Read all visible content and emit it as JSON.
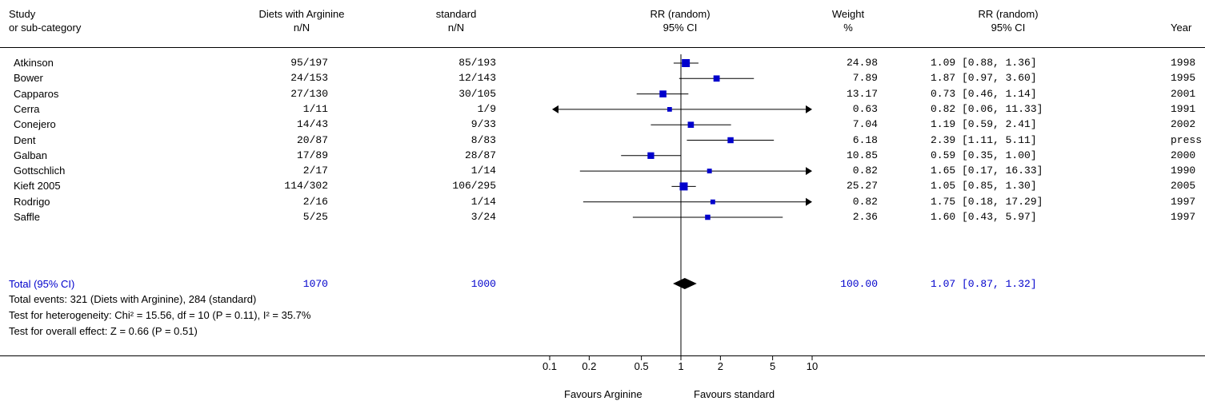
{
  "headers": {
    "study": [
      "Study",
      "or sub-category"
    ],
    "arginine": [
      "Diets with Arginine",
      "n/N"
    ],
    "standard": [
      "standard",
      "n/N"
    ],
    "rr_plot": [
      "RR (random)",
      "95% CI"
    ],
    "weight": [
      "Weight",
      "%"
    ],
    "rr_text": [
      "RR (random)",
      "95% CI"
    ],
    "year": [
      "",
      "Year"
    ]
  },
  "rows": [
    {
      "study": "Atkinson",
      "arg": "95/197",
      "std": "85/193",
      "weight": "24.98",
      "ci": "1.09 [0.88, 1.36]",
      "year": "1998"
    },
    {
      "study": "Bower",
      "arg": "24/153",
      "std": "12/143",
      "weight": "7.89",
      "ci": "1.87 [0.97, 3.60]",
      "year": "1995"
    },
    {
      "study": "Capparos",
      "arg": "27/130",
      "std": "30/105",
      "weight": "13.17",
      "ci": "0.73 [0.46, 1.14]",
      "year": "2001"
    },
    {
      "study": "Cerra",
      "arg": "1/11",
      "std": "1/9",
      "weight": "0.63",
      "ci": "0.82 [0.06, 11.33]",
      "year": "1991"
    },
    {
      "study": "Conejero",
      "arg": "14/43",
      "std": "9/33",
      "weight": "7.04",
      "ci": "1.19 [0.59, 2.41]",
      "year": "2002"
    },
    {
      "study": "Dent",
      "arg": "20/87",
      "std": "8/83",
      "weight": "6.18",
      "ci": "2.39 [1.11, 5.11]",
      "year": "press"
    },
    {
      "study": "Galban",
      "arg": "17/89",
      "std": "28/87",
      "weight": "10.85",
      "ci": "0.59 [0.35, 1.00]",
      "year": "2000"
    },
    {
      "study": "Gottschlich",
      "arg": "2/17",
      "std": "1/14",
      "weight": "0.82",
      "ci": "1.65 [0.17, 16.33]",
      "year": "1990"
    },
    {
      "study": "Kieft 2005",
      "arg": "114/302",
      "std": "106/295",
      "weight": "25.27",
      "ci": "1.05 [0.85, 1.30]",
      "year": "2005"
    },
    {
      "study": "Rodrigo",
      "arg": "2/16",
      "std": "1/14",
      "weight": "0.82",
      "ci": "1.75 [0.18, 17.29]",
      "year": "1997"
    },
    {
      "study": "Saffle",
      "arg": "5/25",
      "std": "3/24",
      "weight": "2.36",
      "ci": "1.60 [0.43, 5.97]",
      "year": "1997"
    }
  ],
  "total": {
    "label": "Total (95% CI)",
    "arg": "1070",
    "std": "1000",
    "weight": "100.00",
    "ci": "1.07 [0.87, 1.32]"
  },
  "notes": [
    "Total events: 321 (Diets with Arginine), 284 (standard)",
    "Test for heterogeneity: Chi² = 15.56, df = 10 (P = 0.11), I² = 35.7%",
    "Test for overall effect: Z = 0.66 (P = 0.51)"
  ],
  "axis": {
    "ticks": [
      0.1,
      0.2,
      0.5,
      1,
      2,
      5,
      10
    ],
    "tick_labels": [
      "0.1",
      "0.2",
      "0.5",
      "1",
      "2",
      "5",
      "10"
    ],
    "favours_left": "Favours Arginine",
    "favours_right": "Favours standard"
  },
  "colors": {
    "marker": "#0000cc",
    "total_text": "#0000cc",
    "line": "#000000"
  },
  "chart_data": {
    "type": "forest",
    "scale": "log",
    "xlim": [
      0.1,
      10
    ],
    "null_value": 1,
    "studies": [
      {
        "name": "Atkinson",
        "rr": 1.09,
        "lo": 0.88,
        "hi": 1.36,
        "weight": 24.98
      },
      {
        "name": "Bower",
        "rr": 1.87,
        "lo": 0.97,
        "hi": 3.6,
        "weight": 7.89
      },
      {
        "name": "Capparos",
        "rr": 0.73,
        "lo": 0.46,
        "hi": 1.14,
        "weight": 13.17
      },
      {
        "name": "Cerra",
        "rr": 0.82,
        "lo": 0.06,
        "hi": 11.33,
        "weight": 0.63
      },
      {
        "name": "Conejero",
        "rr": 1.19,
        "lo": 0.59,
        "hi": 2.41,
        "weight": 7.04
      },
      {
        "name": "Dent",
        "rr": 2.39,
        "lo": 1.11,
        "hi": 5.11,
        "weight": 6.18
      },
      {
        "name": "Galban",
        "rr": 0.59,
        "lo": 0.35,
        "hi": 1.0,
        "weight": 10.85
      },
      {
        "name": "Gottschlich",
        "rr": 1.65,
        "lo": 0.17,
        "hi": 16.33,
        "weight": 0.82
      },
      {
        "name": "Kieft 2005",
        "rr": 1.05,
        "lo": 0.85,
        "hi": 1.3,
        "weight": 25.27
      },
      {
        "name": "Rodrigo",
        "rr": 1.75,
        "lo": 0.18,
        "hi": 17.29,
        "weight": 0.82
      },
      {
        "name": "Saffle",
        "rr": 1.6,
        "lo": 0.43,
        "hi": 5.97,
        "weight": 2.36
      }
    ],
    "pooled": {
      "rr": 1.07,
      "lo": 0.87,
      "hi": 1.32,
      "weight": 100.0
    }
  }
}
